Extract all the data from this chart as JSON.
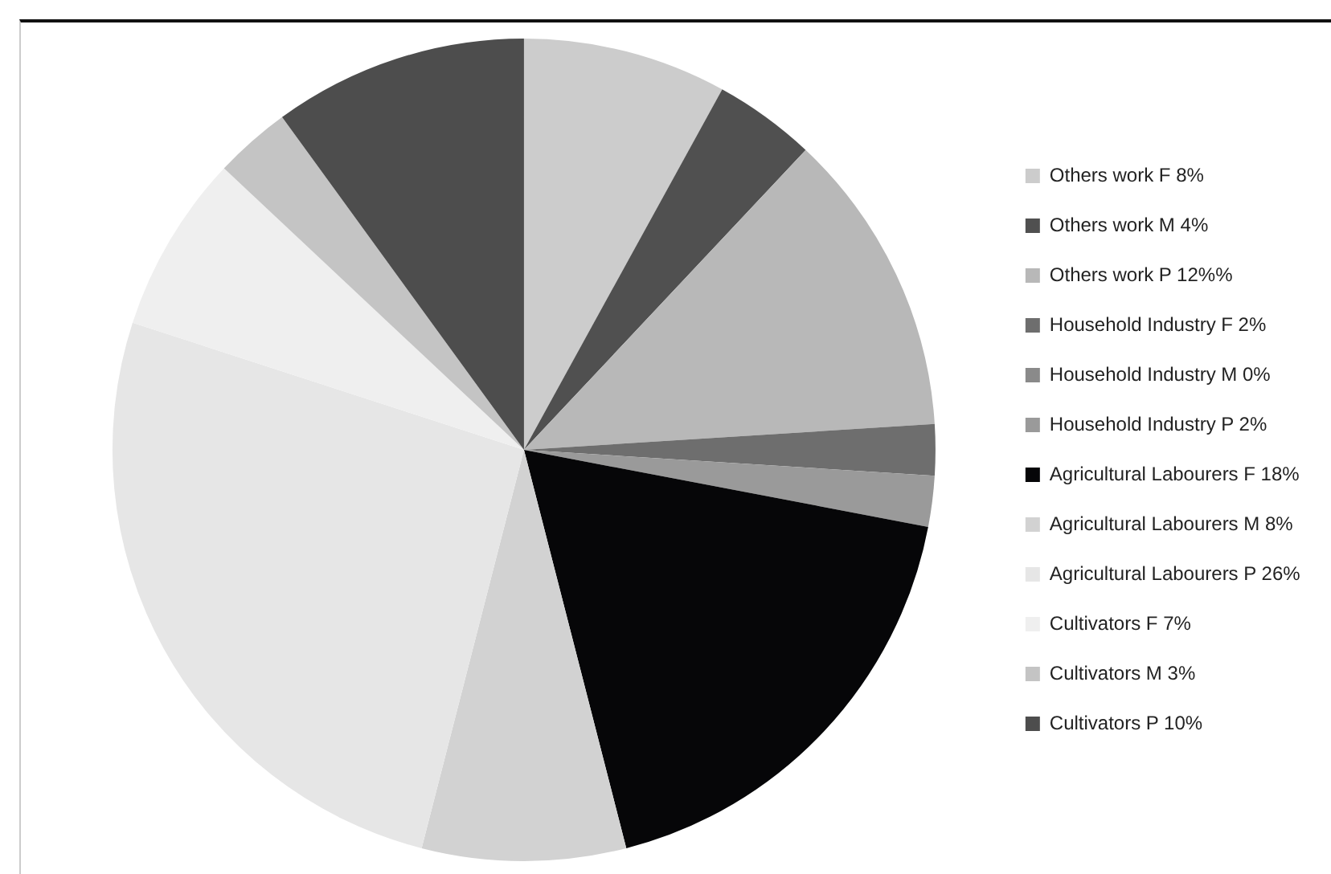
{
  "chart_data": {
    "type": "pie",
    "categories": [
      "Others work F 8%",
      "Others work M 4%",
      "Others work P 12%%",
      "Household Industry F 2%",
      "Household Industry M 0%",
      "Household Industry P 2%",
      "Agricultural Labourers F 18%",
      "Agricultural Labourers M 8%",
      "Agricultural Labourers P 26%",
      "Cultivators F 7%",
      "Cultivators M 3%",
      "Cultivators P 10%"
    ],
    "values": [
      8,
      4,
      12,
      2,
      0,
      2,
      18,
      8,
      26,
      7,
      3,
      10
    ],
    "colors": [
      "#cccccc",
      "#505050",
      "#b8b8b8",
      "#6e6e6e",
      "#8a8a8a",
      "#9a9a9a",
      "#060608",
      "#d2d2d2",
      "#e6e6e6",
      "#efefef",
      "#c4c4c4",
      "#4d4d4d"
    ],
    "legend": "right"
  }
}
